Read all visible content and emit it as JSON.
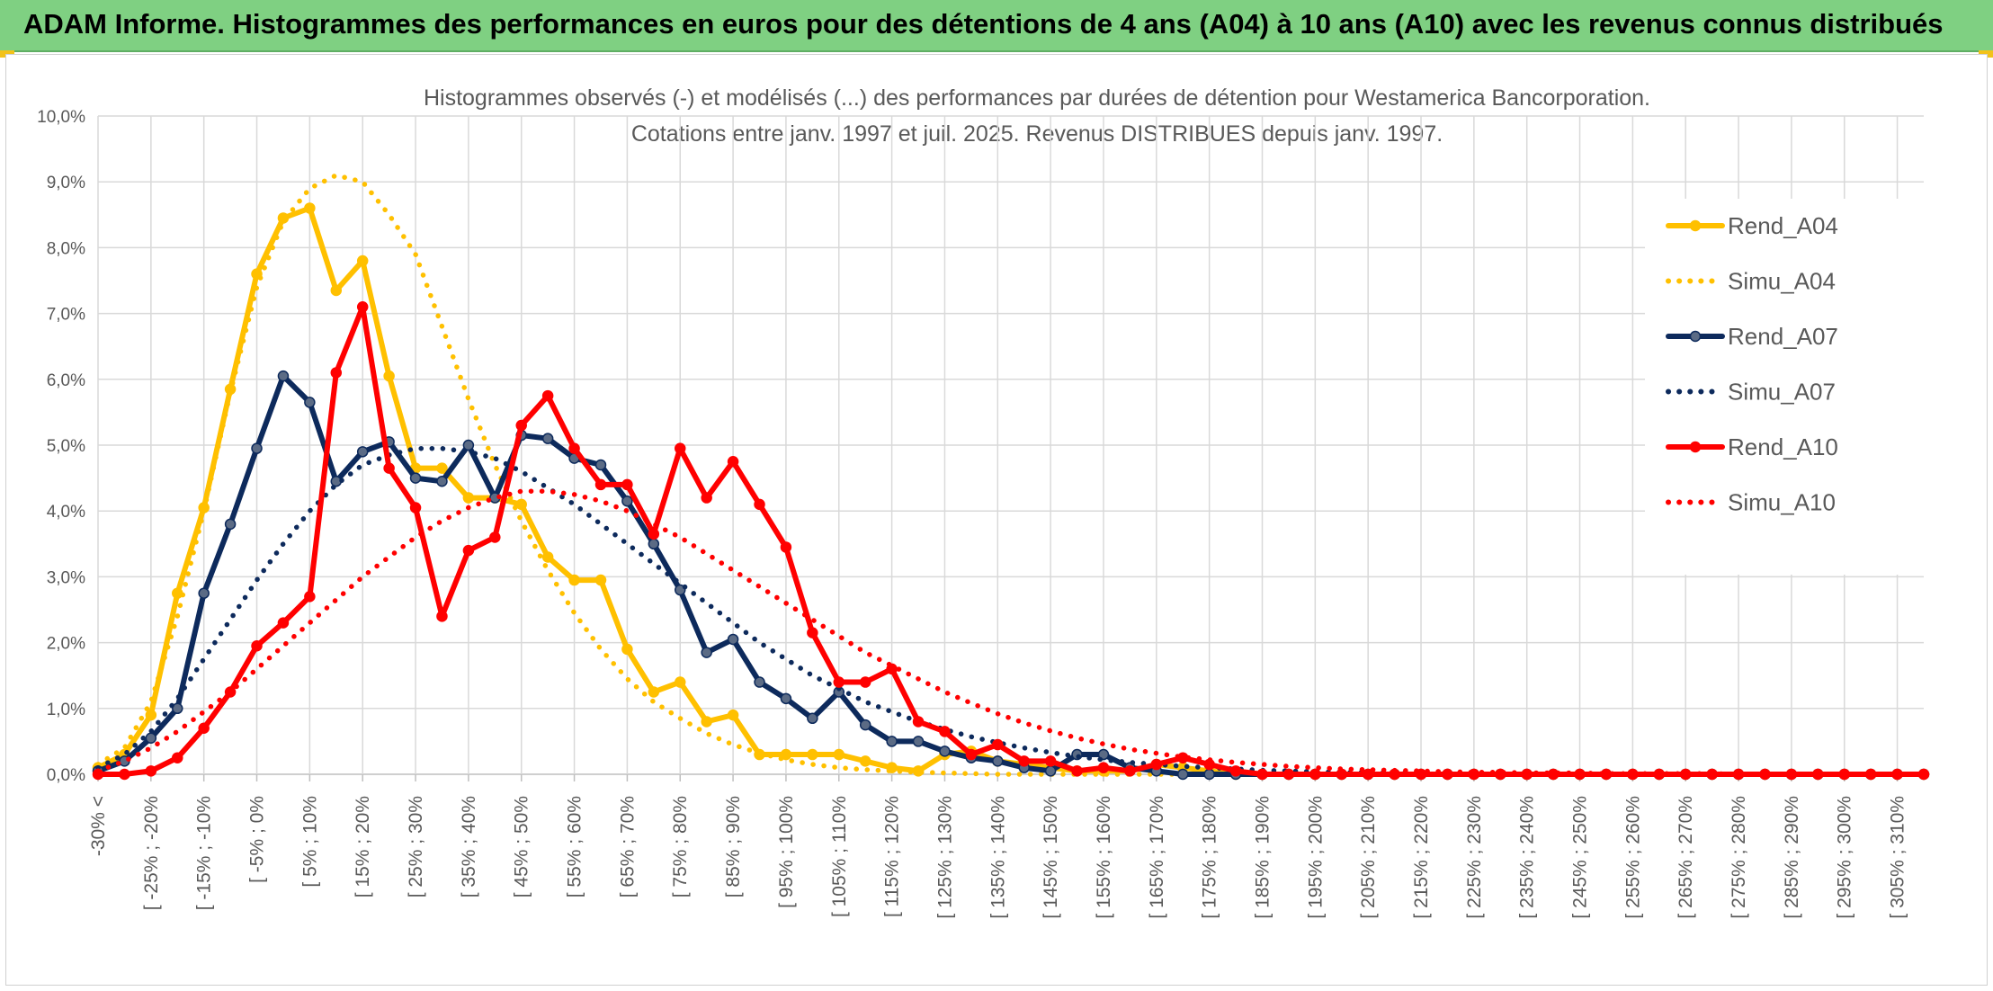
{
  "header": {
    "title": "ADAM Informe. Histogrammes des performances en euros pour des détentions de 4 ans (A04) à 10 ans (A10) avec les revenus connus distribués"
  },
  "chart_data": {
    "type": "line",
    "title": "Histogrammes observés (-) et modélisés (...) des performances par durées de détention pour Westamerica Bancorporation.",
    "subtitle": "Cotations entre janv. 1997 et juil. 2025. Revenus DISTRIBUES depuis janv. 1997.",
    "ylim": [
      0,
      10
    ],
    "y_ticks": [
      "0,0%",
      "1,0%",
      "2,0%",
      "3,0%",
      "4,0%",
      "5,0%",
      "6,0%",
      "7,0%",
      "8,0%",
      "9,0%",
      "10,0%"
    ],
    "x_labels": [
      "-30% <",
      "[ -25% ; -20%",
      "[ -15% ; -10%",
      "[ -5% ; 0%",
      "[ 5% ; 10%",
      "[ 15% ; 20%",
      "[ 25% ; 30%",
      "[ 35% ; 40%",
      "[ 45% ; 50%",
      "[ 55% ; 60%",
      "[ 65% ; 70%",
      "[ 75% ; 80%",
      "[ 85% ; 90%",
      "[ 95% ; 100%",
      "[ 105% ; 110%",
      "[ 115% ; 120%",
      "[ 125% ; 130%",
      "[ 135% ; 140%",
      "[ 145% ; 150%",
      "[ 155% ; 160%",
      "[ 165% ; 170%",
      "[ 175% ; 180%",
      "[ 185% ; 190%",
      "[ 195% ; 200%",
      "[ 205% ; 210%",
      "[ 215% ; 220%",
      "[ 225% ; 230%",
      "[ 235% ; 240%",
      "[ 245% ; 250%",
      "[ 255% ; 260%",
      "[ 265% ; 270%",
      "[ 275% ; 280%",
      "[ 285% ; 290%",
      "[ 295% ; 300%",
      "[ 305% ; 310%"
    ],
    "legend_position": "right",
    "series": [
      {
        "name": "Rend_A04",
        "color": "#FFC000",
        "style": "solid",
        "markers": true,
        "values": [
          0.1,
          0.3,
          0.9,
          2.75,
          4.05,
          5.85,
          7.6,
          8.45,
          8.6,
          7.35,
          7.8,
          6.05,
          4.65,
          4.65,
          4.2,
          4.2,
          4.1,
          3.3,
          2.95,
          2.95,
          1.9,
          1.25,
          1.4,
          0.8,
          0.9,
          0.3,
          0.3,
          0.3,
          0.3,
          0.2,
          0.1,
          0.05,
          0.3,
          0.35,
          0.2,
          0.15,
          0.1,
          0.05,
          0.05,
          0.05,
          0.15,
          0.1,
          0.05,
          0,
          0,
          0,
          0,
          0,
          0,
          0,
          0,
          0,
          0,
          0,
          0,
          0,
          0,
          0,
          0,
          0,
          0,
          0,
          0,
          0,
          0,
          0,
          0,
          0,
          0,
          0
        ]
      },
      {
        "name": "Simu_A04",
        "color": "#FFC000",
        "style": "dotted",
        "markers": false,
        "values": [
          0.15,
          0.4,
          1.1,
          2.4,
          4.0,
          5.8,
          7.4,
          8.4,
          8.9,
          9.1,
          9.0,
          8.5,
          7.9,
          6.8,
          5.7,
          4.7,
          3.85,
          3.1,
          2.45,
          1.9,
          1.45,
          1.1,
          0.85,
          0.62,
          0.45,
          0.32,
          0.22,
          0.15,
          0.1,
          0.07,
          0.05,
          0.03,
          0.02,
          0.01,
          0,
          0,
          0,
          0,
          0,
          0,
          0,
          0,
          0,
          0,
          0,
          0,
          0,
          0,
          0,
          0,
          0,
          0,
          0,
          0,
          0,
          0,
          0,
          0,
          0,
          0,
          0,
          0,
          0,
          0,
          0,
          0,
          0,
          0,
          0,
          0
        ]
      },
      {
        "name": "Rend_A07",
        "color": "#0D2A5C",
        "style": "solid",
        "markers": true,
        "values": [
          0.05,
          0.2,
          0.55,
          1.0,
          2.75,
          3.8,
          4.95,
          6.05,
          5.65,
          4.45,
          4.9,
          5.05,
          4.5,
          4.45,
          5.0,
          4.2,
          5.15,
          5.1,
          4.8,
          4.7,
          4.15,
          3.5,
          2.8,
          1.85,
          2.05,
          1.4,
          1.15,
          0.85,
          1.25,
          0.75,
          0.5,
          0.5,
          0.35,
          0.25,
          0.2,
          0.1,
          0.05,
          0.3,
          0.3,
          0.1,
          0.05,
          0,
          0,
          0,
          0,
          0,
          0,
          0,
          0,
          0,
          0,
          0,
          0,
          0,
          0,
          0,
          0,
          0,
          0,
          0,
          0,
          0,
          0,
          0,
          0,
          0,
          0,
          0,
          0,
          0
        ]
      },
      {
        "name": "Simu_A07",
        "color": "#0D2A5C",
        "style": "dotted",
        "markers": false,
        "values": [
          0.1,
          0.3,
          0.65,
          1.15,
          1.75,
          2.35,
          2.95,
          3.5,
          4.0,
          4.4,
          4.7,
          4.85,
          4.95,
          4.95,
          4.9,
          4.8,
          4.6,
          4.35,
          4.1,
          3.8,
          3.5,
          3.2,
          2.9,
          2.6,
          2.3,
          2.0,
          1.75,
          1.5,
          1.3,
          1.1,
          0.95,
          0.8,
          0.68,
          0.57,
          0.48,
          0.4,
          0.33,
          0.27,
          0.22,
          0.18,
          0.15,
          0.12,
          0.1,
          0.08,
          0.06,
          0.05,
          0.04,
          0.03,
          0.02,
          0.02,
          0.01,
          0.01,
          0.01,
          0.01,
          0,
          0,
          0,
          0,
          0,
          0,
          0,
          0,
          0,
          0,
          0,
          0,
          0,
          0,
          0,
          0
        ]
      },
      {
        "name": "Rend_A10",
        "color": "#FF0000",
        "style": "solid",
        "markers": true,
        "values": [
          0,
          0,
          0.05,
          0.25,
          0.7,
          1.25,
          1.95,
          2.3,
          2.7,
          6.1,
          7.1,
          4.65,
          4.05,
          2.4,
          3.4,
          3.6,
          5.3,
          5.75,
          4.95,
          4.4,
          4.4,
          3.65,
          4.95,
          4.2,
          4.75,
          4.1,
          3.45,
          2.15,
          1.4,
          1.4,
          1.6,
          0.8,
          0.65,
          0.3,
          0.45,
          0.2,
          0.2,
          0.05,
          0.1,
          0.05,
          0.15,
          0.25,
          0.15,
          0.05,
          0,
          0,
          0,
          0,
          0,
          0,
          0,
          0,
          0,
          0,
          0,
          0,
          0,
          0,
          0,
          0,
          0,
          0,
          0,
          0,
          0,
          0,
          0,
          0,
          0,
          0
        ]
      },
      {
        "name": "Simu_A10",
        "color": "#FF0000",
        "style": "dotted",
        "markers": false,
        "values": [
          0.05,
          0.2,
          0.4,
          0.65,
          0.95,
          1.25,
          1.6,
          1.95,
          2.3,
          2.65,
          3.0,
          3.3,
          3.6,
          3.85,
          4.05,
          4.2,
          4.3,
          4.3,
          4.25,
          4.15,
          4.0,
          3.8,
          3.6,
          3.35,
          3.1,
          2.85,
          2.6,
          2.35,
          2.1,
          1.85,
          1.65,
          1.45,
          1.25,
          1.08,
          0.92,
          0.78,
          0.66,
          0.55,
          0.46,
          0.38,
          0.32,
          0.26,
          0.22,
          0.18,
          0.15,
          0.12,
          0.1,
          0.08,
          0.07,
          0.06,
          0.05,
          0.04,
          0.03,
          0.03,
          0.02,
          0.02,
          0.02,
          0.01,
          0.01,
          0.01,
          0.01,
          0.01,
          0,
          0,
          0,
          0,
          0,
          0,
          0,
          0
        ]
      }
    ]
  }
}
